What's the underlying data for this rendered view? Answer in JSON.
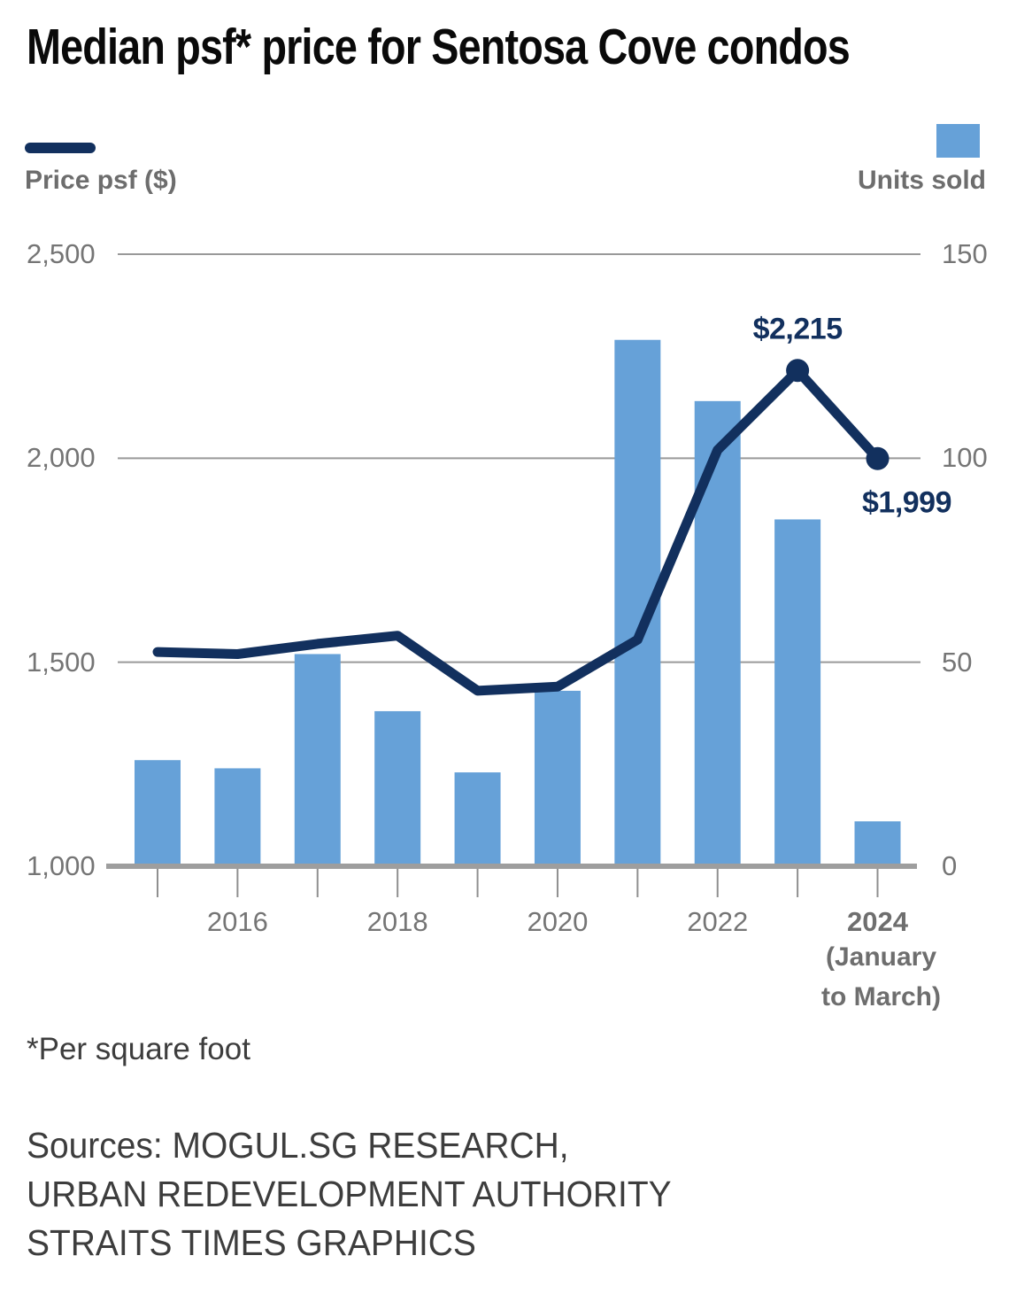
{
  "title": "Median psf* price for Sentosa Cove condos",
  "legend": {
    "line_label": "Price psf ($)",
    "bar_label": "Units sold"
  },
  "colors": {
    "navy": "#12305e",
    "blue": "#66a1d8",
    "grid": "#999999",
    "axis_line": "#9e9e9e",
    "tick": "#8f8f8f",
    "axis_text": "#757575",
    "title_text": "#0a0a0a",
    "legend_text": "#6d6d6d",
    "note_text": "#3d3d3d"
  },
  "chart_data": {
    "type": "line+bar",
    "title": "Median psf* price for Sentosa Cove condos",
    "categories": [
      "2015",
      "2016",
      "2017",
      "2018",
      "2019",
      "2020",
      "2021",
      "2022",
      "2023",
      "2024"
    ],
    "series": [
      {
        "name": "Price psf ($)",
        "type": "line",
        "axis": "left",
        "color_key": "navy",
        "values": [
          1525,
          1520,
          1545,
          1565,
          1430,
          1440,
          1555,
          2020,
          2215,
          1999
        ]
      },
      {
        "name": "Units sold",
        "type": "bar",
        "axis": "right",
        "color_key": "blue",
        "values": [
          26,
          24,
          52,
          38,
          23,
          43,
          129,
          114,
          85,
          11
        ]
      }
    ],
    "left_axis": {
      "title": "Price psf ($)",
      "min": 1000,
      "max": 2500,
      "ticks": [
        {
          "value": 2500,
          "label": "2,500"
        },
        {
          "value": 2000,
          "label": "2,000"
        },
        {
          "value": 1500,
          "label": "1,500"
        },
        {
          "value": 1000,
          "label": "1,000"
        }
      ]
    },
    "right_axis": {
      "title": "Units sold",
      "min": 0,
      "max": 150,
      "ticks": [
        {
          "value": 150,
          "label": "150"
        },
        {
          "value": 100,
          "label": "100"
        },
        {
          "value": 50,
          "label": "50"
        },
        {
          "value": 0,
          "label": "0"
        }
      ]
    },
    "x_axis": {
      "show_label_for": [
        "2016",
        "2018",
        "2020",
        "2022",
        "2024"
      ],
      "bold_labels": [
        "2024"
      ],
      "sub_label_year": "2024",
      "sub_label_lines": [
        "(January",
        "to March)"
      ]
    },
    "annotations": [
      {
        "text": "$2,215",
        "category": "2023",
        "position": "above"
      },
      {
        "text": "$1,999",
        "category": "2024",
        "position": "below"
      }
    ],
    "grid": "horizontal",
    "legend_position": "top"
  },
  "footnote": "*Per square foot",
  "sources": [
    "Sources: MOGUL.SG RESEARCH,",
    "URBAN REDEVELOPMENT AUTHORITY",
    "STRAITS TIMES GRAPHICS"
  ]
}
